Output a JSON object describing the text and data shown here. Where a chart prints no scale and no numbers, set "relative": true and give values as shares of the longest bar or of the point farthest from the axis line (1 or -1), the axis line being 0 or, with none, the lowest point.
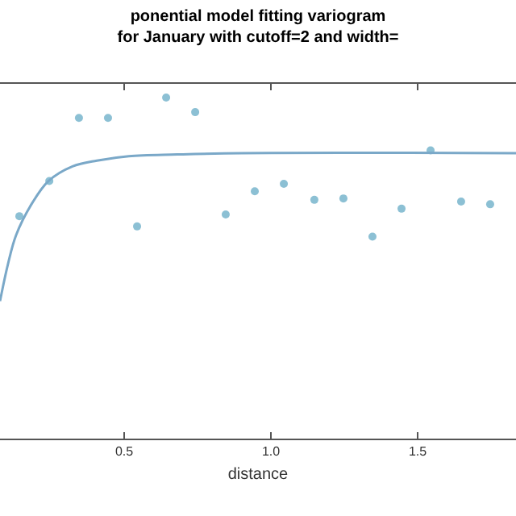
{
  "chart_data": {
    "type": "scatter",
    "title": "ponential model fitting variogram for January with cutoff=2 and width=",
    "xlabel": "distance",
    "relative": true,
    "xlim": [
      0.077,
      1.835
    ],
    "xticks": [
      0.5,
      {
        "value": 1,
        "label": "1.0"
      },
      1.5
    ],
    "grid": false,
    "marker": "circle",
    "series": [
      {
        "color": "#8cc0d4",
        "x": [
          0.143,
          0.245,
          0.346,
          0.445,
          0.544,
          0.643,
          0.742,
          0.846,
          0.945,
          1.044,
          1.148,
          1.247,
          1.346,
          1.445,
          1.544,
          1.648,
          1.747
        ],
        "values": [
          0.652,
          0.755,
          0.94,
          0.94,
          0.622,
          1.0,
          0.957,
          0.657,
          0.725,
          0.747,
          0.7,
          0.704,
          0.592,
          0.674,
          0.845,
          0.695,
          0.687
        ]
      },
      {
        "type": "line",
        "marker": "none",
        "color": "#7aa8c8",
        "x": [
          0.077,
          0.104,
          0.132,
          0.187,
          0.242,
          0.324,
          0.407,
          0.516,
          0.681,
          0.901,
          1.835
        ],
        "values": [
          0.403,
          0.511,
          0.597,
          0.691,
          0.755,
          0.798,
          0.815,
          0.828,
          0.833,
          0.837,
          0.837
        ]
      }
    ]
  }
}
